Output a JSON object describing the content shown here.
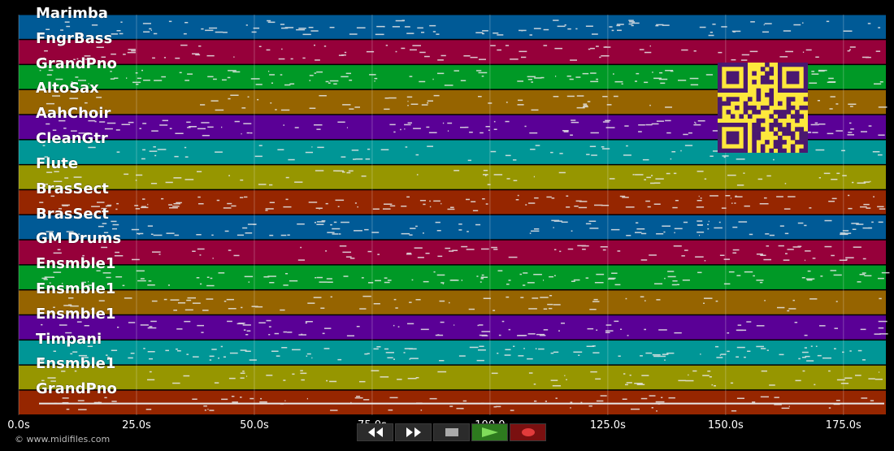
{
  "tracks": [
    {
      "name": "Marimba",
      "color": "#005a96"
    },
    {
      "name": "FngrBass",
      "color": "#96003a"
    },
    {
      "name": "GrandPno",
      "color": "#009926"
    },
    {
      "name": "AltoSax",
      "color": "#966400"
    },
    {
      "name": "AahChoir",
      "color": "#5a0096"
    },
    {
      "name": "CleanGtr",
      "color": "#009696"
    },
    {
      "name": "Flute",
      "color": "#969600"
    },
    {
      "name": "BrasSect",
      "color": "#962600"
    },
    {
      "name": "BrasSect",
      "color": "#005a96"
    },
    {
      "name": "GM Drums",
      "color": "#96003a"
    },
    {
      "name": "Ensmble1",
      "color": "#009926"
    },
    {
      "name": "Ensmble1",
      "color": "#966400"
    },
    {
      "name": "Ensmble1",
      "color": "#5a0096"
    },
    {
      "name": "Timpani",
      "color": "#009696"
    },
    {
      "name": "Ensmble1",
      "color": "#969600"
    },
    {
      "name": "GrandPno",
      "color": "#962600"
    }
  ],
  "timeline": {
    "max_seconds": 184,
    "ticks": [
      {
        "value": 0,
        "label": "0.0s"
      },
      {
        "value": 25,
        "label": "25.0s"
      },
      {
        "value": 50,
        "label": "50.0s"
      },
      {
        "value": 75,
        "label": "75.0s"
      },
      {
        "value": 100,
        "label": "100.0"
      },
      {
        "value": 125,
        "label": "125.0s"
      },
      {
        "value": 150,
        "label": "150.0s"
      },
      {
        "value": 175,
        "label": "175.0s"
      }
    ]
  },
  "copyright": "© www.midifiles.com",
  "transport": {
    "rewind": "rewind-icon",
    "fast_forward": "fast-forward-icon",
    "stop": "stop-icon",
    "play": "play-icon",
    "record": "record-icon"
  },
  "qr_color": "#fde73c"
}
